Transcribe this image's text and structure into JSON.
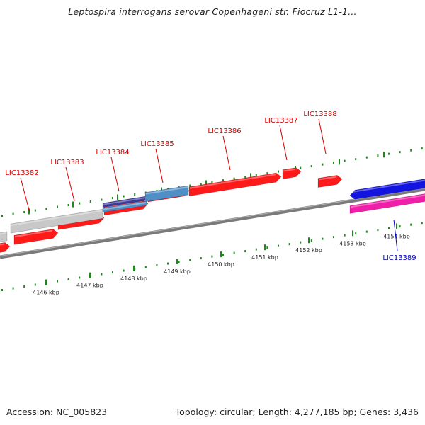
{
  "title": "Leptospira interrogans serovar Copenhageni str. Fiocruz L1-1...",
  "footer": {
    "accession": "Accession: NC_005823",
    "summary": "Topology: circular; Length: 4,277,185 bp; Genes: 3,436"
  },
  "colors": {
    "forward_cds": "#ff1a1a",
    "reverse_cds": "#ff1a1a",
    "gray_feature": "#c8c8c8",
    "blue_steel": "#4f8fc8",
    "navy": "#3a3a9a",
    "reverse_blue": "#1414e0",
    "reverse_magenta": "#f01ea8",
    "forward_label": "#d40000",
    "reverse_label": "#0000c0",
    "ticks": "#1a8a1a",
    "backbone": "#7a7a7a"
  },
  "tick_labels": [
    "4146 kbp",
    "4147 kbp",
    "4148 kbp",
    "4149 kbp",
    "4150 kbp",
    "4151 kbp",
    "4152 kbp",
    "4153 kbp",
    "4154 kbp"
  ],
  "genes": [
    {
      "name": "LIC13382",
      "strand": "forward"
    },
    {
      "name": "LIC13383",
      "strand": "forward"
    },
    {
      "name": "LIC13384",
      "strand": "forward"
    },
    {
      "name": "LIC13385",
      "strand": "forward"
    },
    {
      "name": "LIC13386",
      "strand": "forward"
    },
    {
      "name": "LIC13387",
      "strand": "forward"
    },
    {
      "name": "LIC13388",
      "strand": "forward"
    },
    {
      "name": "LIC13389",
      "strand": "reverse"
    }
  ]
}
